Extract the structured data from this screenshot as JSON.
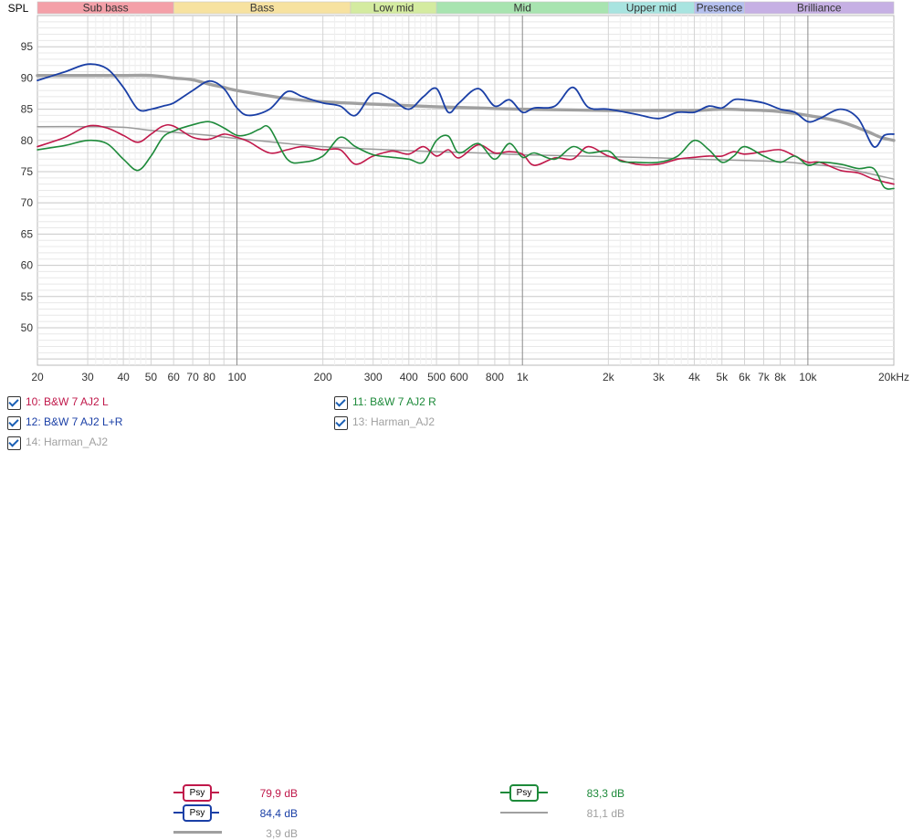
{
  "chart_data": {
    "type": "line",
    "ylabel": "SPL",
    "xlabel": "",
    "x_scale": "log",
    "xlim": [
      20,
      20000
    ],
    "ylim": [
      44,
      100
    ],
    "y_ticks": [
      50,
      55,
      60,
      65,
      70,
      75,
      80,
      85,
      90,
      95
    ],
    "x_ticks": [
      {
        "v": 20,
        "label": "20"
      },
      {
        "v": 30,
        "label": "30"
      },
      {
        "v": 40,
        "label": "40"
      },
      {
        "v": 50,
        "label": "50"
      },
      {
        "v": 60,
        "label": "60"
      },
      {
        "v": 70,
        "label": "70"
      },
      {
        "v": 80,
        "label": "80"
      },
      {
        "v": 100,
        "label": "100"
      },
      {
        "v": 200,
        "label": "200"
      },
      {
        "v": 300,
        "label": "300"
      },
      {
        "v": 400,
        "label": "400"
      },
      {
        "v": 500,
        "label": "500"
      },
      {
        "v": 600,
        "label": "600"
      },
      {
        "v": 800,
        "label": "800"
      },
      {
        "v": 1000,
        "label": "1k"
      },
      {
        "v": 2000,
        "label": "2k"
      },
      {
        "v": 3000,
        "label": "3k"
      },
      {
        "v": 4000,
        "label": "4k"
      },
      {
        "v": 5000,
        "label": "5k"
      },
      {
        "v": 6000,
        "label": "6k"
      },
      {
        "v": 7000,
        "label": "7k"
      },
      {
        "v": 8000,
        "label": "8k"
      },
      {
        "v": 10000,
        "label": "10k"
      },
      {
        "v": 20000,
        "label": "20kHz"
      }
    ],
    "bands": [
      {
        "label": "Sub bass",
        "from": 20,
        "to": 60,
        "color": "#f4a0a8"
      },
      {
        "label": "Bass",
        "from": 60,
        "to": 250,
        "color": "#f7e2a0"
      },
      {
        "label": "Low mid",
        "from": 250,
        "to": 500,
        "color": "#d4eba0"
      },
      {
        "label": "Mid",
        "from": 500,
        "to": 2000,
        "color": "#a8e4b0"
      },
      {
        "label": "Upper mid",
        "from": 2000,
        "to": 4000,
        "color": "#a8e4e0"
      },
      {
        "label": "Presence",
        "from": 4000,
        "to": 6000,
        "color": "#b4bfee"
      },
      {
        "label": "Brilliance",
        "from": 6000,
        "to": 20000,
        "color": "#c6b0e4"
      }
    ],
    "series": [
      {
        "name": "10: B&W 7 AJ2 L",
        "color": "#c0184a",
        "width": 1.6,
        "points": [
          [
            20,
            79
          ],
          [
            25,
            80.5
          ],
          [
            30,
            82.3
          ],
          [
            35,
            82
          ],
          [
            40,
            80.8
          ],
          [
            45,
            79.7
          ],
          [
            50,
            81
          ],
          [
            55,
            82.3
          ],
          [
            60,
            82.3
          ],
          [
            70,
            80.5
          ],
          [
            80,
            80.2
          ],
          [
            90,
            81
          ],
          [
            100,
            80.5
          ],
          [
            110,
            79.8
          ],
          [
            130,
            78
          ],
          [
            150,
            78.5
          ],
          [
            170,
            79
          ],
          [
            200,
            78.5
          ],
          [
            230,
            78.5
          ],
          [
            260,
            76.2
          ],
          [
            300,
            77.5
          ],
          [
            350,
            78.3
          ],
          [
            400,
            77.8
          ],
          [
            450,
            79
          ],
          [
            500,
            77.5
          ],
          [
            550,
            78.5
          ],
          [
            600,
            77.2
          ],
          [
            700,
            79.3
          ],
          [
            800,
            78
          ],
          [
            900,
            78.2
          ],
          [
            1000,
            77.8
          ],
          [
            1100,
            76
          ],
          [
            1300,
            77.2
          ],
          [
            1500,
            77
          ],
          [
            1700,
            79
          ],
          [
            2000,
            77.5
          ],
          [
            2500,
            76.2
          ],
          [
            3000,
            76.2
          ],
          [
            3500,
            77
          ],
          [
            4000,
            77.3
          ],
          [
            4500,
            77.5
          ],
          [
            5000,
            77.5
          ],
          [
            5500,
            78.2
          ],
          [
            6000,
            77.8
          ],
          [
            7000,
            78.2
          ],
          [
            8000,
            78.5
          ],
          [
            9000,
            77.5
          ],
          [
            10000,
            76.5
          ],
          [
            11000,
            76.5
          ],
          [
            13000,
            75.2
          ],
          [
            15000,
            74.8
          ],
          [
            17000,
            73.8
          ],
          [
            20000,
            73
          ]
        ]
      },
      {
        "name": "12: B&W 7 AJ2 L+R",
        "color": "#1a3fa6",
        "width": 1.8,
        "points": [
          [
            20,
            89.6
          ],
          [
            25,
            91
          ],
          [
            30,
            92.2
          ],
          [
            35,
            91.5
          ],
          [
            40,
            88.5
          ],
          [
            45,
            85
          ],
          [
            50,
            85
          ],
          [
            55,
            85.5
          ],
          [
            60,
            86
          ],
          [
            70,
            88
          ],
          [
            80,
            89.5
          ],
          [
            90,
            88.3
          ],
          [
            100,
            85.2
          ],
          [
            110,
            84
          ],
          [
            130,
            85
          ],
          [
            150,
            87.8
          ],
          [
            170,
            87
          ],
          [
            200,
            86
          ],
          [
            230,
            85.5
          ],
          [
            260,
            84
          ],
          [
            300,
            87.5
          ],
          [
            350,
            86.5
          ],
          [
            400,
            85
          ],
          [
            450,
            87
          ],
          [
            500,
            88.3
          ],
          [
            550,
            84.5
          ],
          [
            600,
            86
          ],
          [
            700,
            88.3
          ],
          [
            800,
            85.5
          ],
          [
            900,
            86.5
          ],
          [
            1000,
            84.5
          ],
          [
            1100,
            85.2
          ],
          [
            1300,
            85.5
          ],
          [
            1500,
            88.5
          ],
          [
            1700,
            85.3
          ],
          [
            2000,
            85
          ],
          [
            2500,
            84.2
          ],
          [
            3000,
            83.5
          ],
          [
            3500,
            84.5
          ],
          [
            4000,
            84.5
          ],
          [
            4500,
            85.5
          ],
          [
            5000,
            85.2
          ],
          [
            5500,
            86.5
          ],
          [
            6000,
            86.5
          ],
          [
            7000,
            86
          ],
          [
            8000,
            85
          ],
          [
            9000,
            84.5
          ],
          [
            10000,
            83
          ],
          [
            11000,
            83.5
          ],
          [
            13000,
            85
          ],
          [
            15000,
            83.5
          ],
          [
            17000,
            79
          ],
          [
            18500,
            80.8
          ],
          [
            20000,
            81
          ]
        ]
      },
      {
        "name": "11: B&W 7 AJ2 R",
        "color": "#1d8a3a",
        "width": 1.6,
        "points": [
          [
            20,
            78.5
          ],
          [
            25,
            79.2
          ],
          [
            30,
            80
          ],
          [
            35,
            79.5
          ],
          [
            40,
            77
          ],
          [
            45,
            75.2
          ],
          [
            50,
            77.5
          ],
          [
            55,
            80.5
          ],
          [
            60,
            81.5
          ],
          [
            70,
            82.5
          ],
          [
            80,
            83
          ],
          [
            90,
            82
          ],
          [
            100,
            80.8
          ],
          [
            110,
            81
          ],
          [
            120,
            81.8
          ],
          [
            130,
            82
          ],
          [
            150,
            77
          ],
          [
            170,
            76.5
          ],
          [
            200,
            77.5
          ],
          [
            230,
            80.5
          ],
          [
            260,
            79
          ],
          [
            300,
            77.7
          ],
          [
            350,
            77.3
          ],
          [
            400,
            77
          ],
          [
            450,
            76.5
          ],
          [
            500,
            80
          ],
          [
            550,
            80.7
          ],
          [
            600,
            78
          ],
          [
            700,
            79.5
          ],
          [
            800,
            77
          ],
          [
            900,
            79.5
          ],
          [
            1000,
            77.3
          ],
          [
            1100,
            78
          ],
          [
            1300,
            77
          ],
          [
            1500,
            79
          ],
          [
            1700,
            78
          ],
          [
            2000,
            78.3
          ],
          [
            2200,
            76.7
          ],
          [
            2500,
            76.5
          ],
          [
            3000,
            76.5
          ],
          [
            3500,
            77.5
          ],
          [
            4000,
            80
          ],
          [
            4500,
            78.5
          ],
          [
            5000,
            76.5
          ],
          [
            5500,
            77.5
          ],
          [
            6000,
            79
          ],
          [
            7000,
            77.5
          ],
          [
            8000,
            76.5
          ],
          [
            9000,
            77.5
          ],
          [
            10000,
            76
          ],
          [
            11000,
            76.5
          ],
          [
            13000,
            76.2
          ],
          [
            15000,
            75.5
          ],
          [
            17000,
            75.5
          ],
          [
            18500,
            72.5
          ],
          [
            20000,
            72.3
          ]
        ]
      },
      {
        "name": "13: Harman_AJ2",
        "color": "#9a9a9a",
        "width": 1.5,
        "points": [
          [
            20,
            82.2
          ],
          [
            30,
            82.2
          ],
          [
            40,
            82.1
          ],
          [
            50,
            81.6
          ],
          [
            60,
            81.3
          ],
          [
            80,
            80.8
          ],
          [
            100,
            80.3
          ],
          [
            150,
            79.5
          ],
          [
            200,
            79
          ],
          [
            300,
            78.6
          ],
          [
            500,
            78.2
          ],
          [
            700,
            78
          ],
          [
            1000,
            77.7
          ],
          [
            2000,
            77.4
          ],
          [
            3000,
            77.2
          ],
          [
            4000,
            77
          ],
          [
            6000,
            76.8
          ],
          [
            8000,
            76.6
          ],
          [
            10000,
            76.2
          ],
          [
            13000,
            75.7
          ],
          [
            16000,
            74.8
          ],
          [
            20000,
            73.8
          ]
        ]
      },
      {
        "name": "14: Harman_AJ2",
        "color": "#a0a0a0",
        "width": 3.4,
        "points": [
          [
            20,
            90.4
          ],
          [
            30,
            90.4
          ],
          [
            40,
            90.4
          ],
          [
            50,
            90.4
          ],
          [
            60,
            90
          ],
          [
            70,
            89.7
          ],
          [
            80,
            89
          ],
          [
            90,
            88.5
          ],
          [
            100,
            88
          ],
          [
            150,
            86.7
          ],
          [
            200,
            86.2
          ],
          [
            300,
            85.8
          ],
          [
            500,
            85.4
          ],
          [
            700,
            85.2
          ],
          [
            1000,
            85
          ],
          [
            2000,
            84.8
          ],
          [
            3000,
            84.8
          ],
          [
            4000,
            84.8
          ],
          [
            5000,
            85
          ],
          [
            6000,
            84.9
          ],
          [
            7000,
            84.8
          ],
          [
            8000,
            84.6
          ],
          [
            10000,
            84
          ],
          [
            13000,
            83
          ],
          [
            16000,
            81.5
          ],
          [
            18000,
            80.5
          ],
          [
            20000,
            80
          ]
        ]
      }
    ]
  },
  "legend": [
    {
      "label": "10: B&W 7 AJ2 L",
      "psy": "Psy",
      "value": "79,9 dB",
      "color": "#c0184a"
    },
    {
      "label": "12: B&W 7 AJ2 L+R",
      "psy": "Psy",
      "value": "84,4 dB",
      "color": "#1a3fa6"
    },
    {
      "label": "14: Harman_AJ2",
      "value": "3,9 dB",
      "color": "#a0a0a0"
    },
    {
      "label": "11: B&W 7 AJ2 R",
      "psy": "Psy",
      "value": "83,3 dB",
      "color": "#1d8a3a"
    },
    {
      "label": "13: Harman_AJ2",
      "value": "81,1 dB",
      "color": "#a0a0a0"
    }
  ]
}
